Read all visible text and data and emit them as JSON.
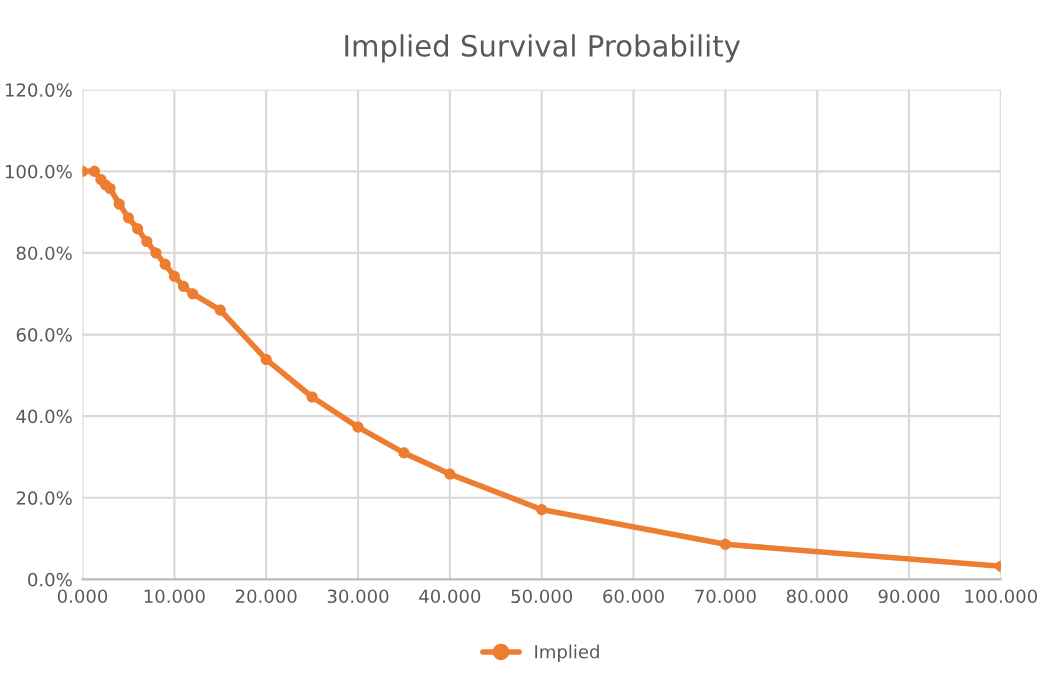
{
  "chart_data": {
    "type": "line",
    "title": "Implied Survival Probability",
    "x": [
      0,
      1.3,
      2,
      2.5,
      3,
      4,
      5,
      6,
      7,
      8,
      9,
      10,
      11,
      12,
      15,
      20,
      25,
      30,
      35,
      40,
      50,
      70,
      100
    ],
    "series": [
      {
        "name": "Implied",
        "color": "#ed7d31",
        "values": [
          100,
          100,
          98,
          96.7,
          95.8,
          92,
          88.6,
          85.9,
          82.8,
          80,
          77.2,
          74.3,
          71.8,
          70,
          66,
          53.9,
          44.7,
          37.3,
          31,
          25.8,
          17.1,
          8.6,
          3.2
        ]
      }
    ],
    "xlim": [
      0,
      100
    ],
    "xticks": [
      {
        "value": 0,
        "label": "0.000"
      },
      {
        "value": 10,
        "label": "10.000"
      },
      {
        "value": 20,
        "label": "20.000"
      },
      {
        "value": 30,
        "label": "30.000"
      },
      {
        "value": 40,
        "label": "40.000"
      },
      {
        "value": 50,
        "label": "50.000"
      },
      {
        "value": 60,
        "label": "60.000"
      },
      {
        "value": 70,
        "label": "70.000"
      },
      {
        "value": 80,
        "label": "80.000"
      },
      {
        "value": 90,
        "label": "90.000"
      },
      {
        "value": 100,
        "label": "100.000"
      }
    ],
    "ylim": [
      0,
      120
    ],
    "yticks": [
      {
        "value": 0,
        "label": "0.0%"
      },
      {
        "value": 20,
        "label": "20.0%"
      },
      {
        "value": 40,
        "label": "40.0%"
      },
      {
        "value": 60,
        "label": "60.0%"
      },
      {
        "value": 80,
        "label": "80.0%"
      },
      {
        "value": 100,
        "label": "100.0%"
      },
      {
        "value": 120,
        "label": "120.0%"
      }
    ],
    "grid": true,
    "legend": "bottom",
    "marker": "circle",
    "line_style": "solid"
  }
}
